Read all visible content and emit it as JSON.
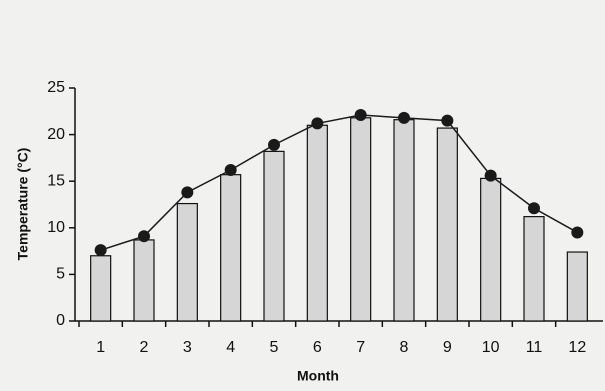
{
  "chart_data": {
    "type": "bar",
    "x_label": "Month",
    "y_label": "Temperature (°C)",
    "categories": [
      "1",
      "2",
      "3",
      "4",
      "5",
      "6",
      "7",
      "8",
      "9",
      "10",
      "11",
      "12"
    ],
    "series": [
      {
        "type": "bar",
        "color": "#d6d6d6",
        "values": [
          7.0,
          8.7,
          12.6,
          15.7,
          18.2,
          21.0,
          21.8,
          21.6,
          20.7,
          15.3,
          11.2,
          7.4
        ]
      },
      {
        "type": "line",
        "color": "#1a1a1a",
        "values": [
          7.6,
          9.1,
          13.8,
          16.2,
          18.9,
          21.2,
          22.1,
          21.8,
          21.5,
          15.6,
          12.1,
          9.5
        ]
      }
    ],
    "ylim": [
      0,
      25
    ],
    "yticks": [
      0,
      5,
      10,
      15,
      20,
      25
    ]
  }
}
